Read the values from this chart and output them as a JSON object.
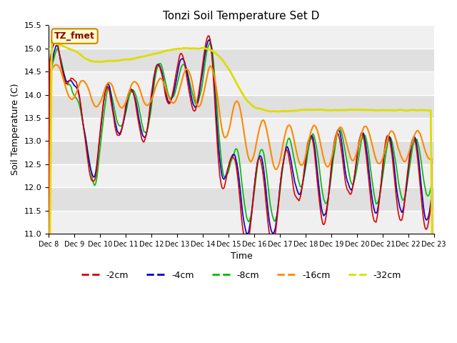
{
  "title": "Tonzi Soil Temperature Set D",
  "xlabel": "Time",
  "ylabel": "Soil Temperature (C)",
  "ylim": [
    11.0,
    15.5
  ],
  "yticks": [
    11.0,
    11.5,
    12.0,
    12.5,
    13.0,
    13.5,
    14.0,
    14.5,
    15.0,
    15.5
  ],
  "tick_labels": [
    "Dec 8",
    "Dec 9",
    "Dec 10",
    "Dec 11",
    "Dec 12",
    "Dec 13",
    "Dec 14",
    "Dec 15",
    "Dec 16",
    "Dec 17",
    "Dec 18",
    "Dec 19",
    "Dec 20",
    "Dec 21",
    "Dec 22",
    "Dec 23"
  ],
  "legend_labels": [
    "-2cm",
    "-4cm",
    "-8cm",
    "-16cm",
    "-32cm"
  ],
  "annotation_text": "TZ_fmet",
  "annotation_bg": "#ffffcc",
  "annotation_border": "#cc8800",
  "annotation_text_color": "#880000",
  "plot_bg": "#e8e8e8",
  "grid_color": "#ffffff",
  "line_colors": {
    "d2cm": "#dd0000",
    "d4cm": "#0000cc",
    "d8cm": "#00bb00",
    "d16cm": "#ff8800",
    "d32cm": "#dddd00"
  },
  "line_widths": {
    "d2cm": 1.2,
    "d4cm": 1.2,
    "d8cm": 1.2,
    "d16cm": 1.5,
    "d32cm": 2.0
  }
}
